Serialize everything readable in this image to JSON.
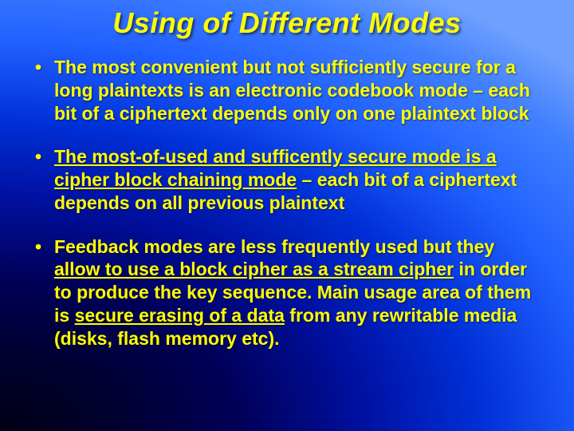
{
  "slide": {
    "title": "Using of Different Modes",
    "title_color": "#ffff00",
    "title_fontsize": 36,
    "body_color": "#ffff00",
    "body_fontsize": 23,
    "background_gradient": {
      "type": "radial",
      "origin": "bottom-left",
      "stops": [
        "#000015",
        "#000030",
        "#00005a",
        "#0010a0",
        "#0030d8",
        "#2060ff",
        "#4080ff",
        "#70a0ff"
      ]
    },
    "bullets": [
      {
        "segments": [
          {
            "text": "The most convenient but not sufficiently secure for a long plaintexts is an electronic codebook mode – each bit of a ciphertext depends only on one plaintext block",
            "underline": false
          }
        ]
      },
      {
        "segments": [
          {
            "text": "The most-of-used and sufficently secure mode is a cipher block chaining mode",
            "underline": true
          },
          {
            "text": " – each bit of a ciphertext depends on all previous plaintext",
            "underline": false
          }
        ]
      },
      {
        "segments": [
          {
            "text": "Feedback modes are less frequently used but they ",
            "underline": false
          },
          {
            "text": "allow to use a block cipher as a stream cipher",
            "underline": true
          },
          {
            "text": " in order to produce the key sequence. Main usage area of them is ",
            "underline": false
          },
          {
            "text": "secure erasing of a data",
            "underline": true
          },
          {
            "text": " from any rewritable media (disks, flash memory etc).",
            "underline": false
          }
        ]
      }
    ]
  }
}
